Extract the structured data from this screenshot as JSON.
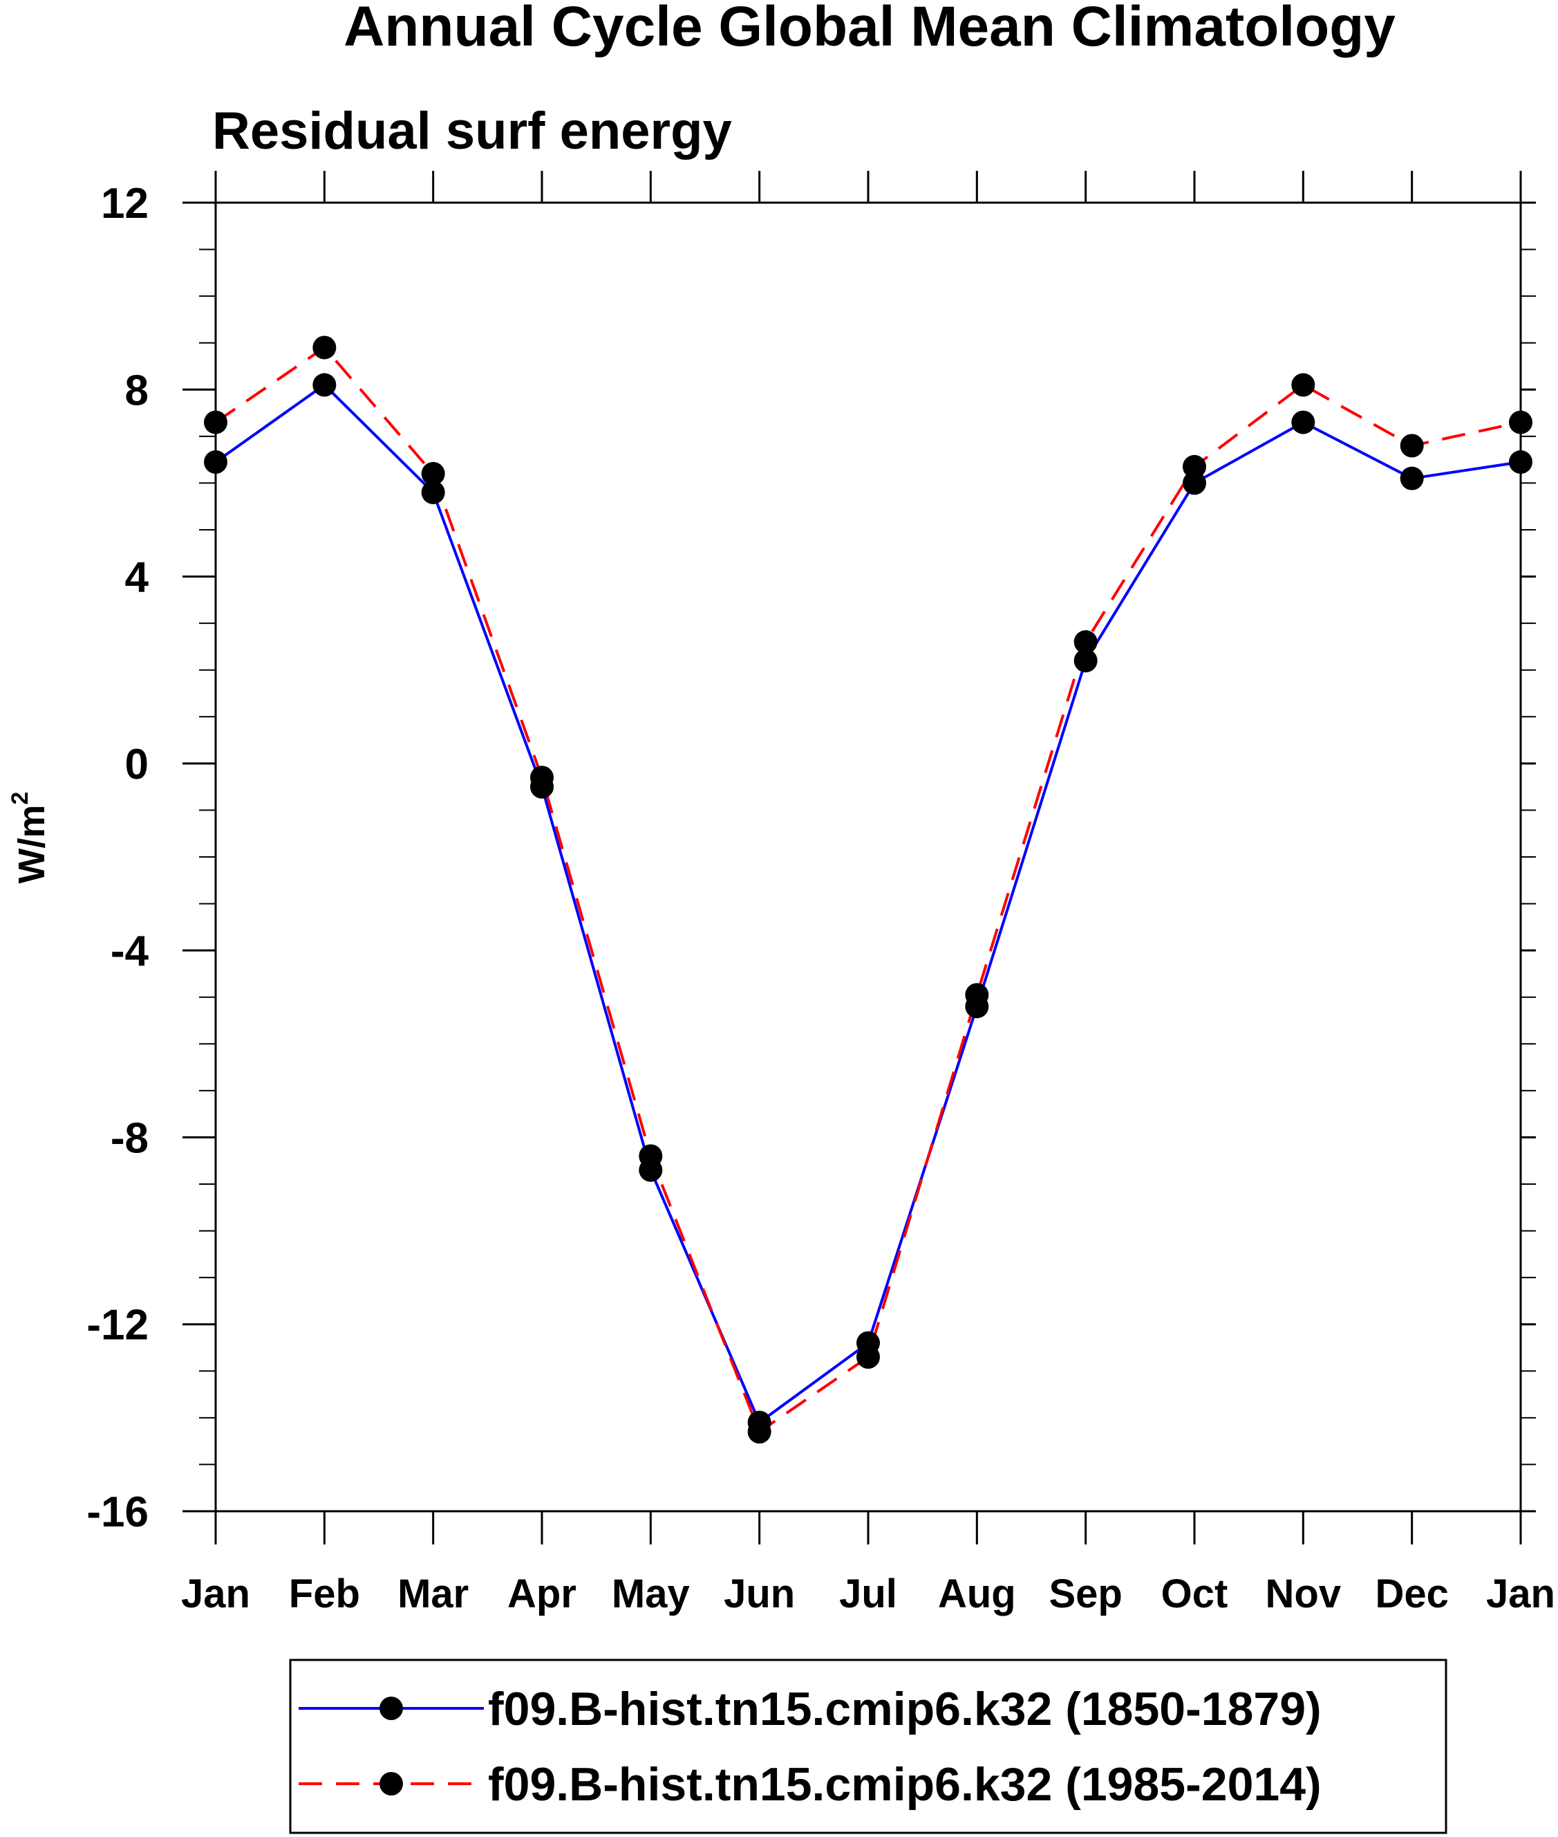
{
  "chart_data": {
    "type": "line",
    "title": "Annual Cycle Global Mean Climatology",
    "subtitle": "Residual surf energy",
    "ylabel": "W/m",
    "ylabel_superscript": "2",
    "xlabel": "",
    "categories": [
      "Jan",
      "Feb",
      "Mar",
      "Apr",
      "May",
      "Jun",
      "Jul",
      "Aug",
      "Sep",
      "Oct",
      "Nov",
      "Dec",
      "Jan"
    ],
    "ylim": [
      -16,
      12
    ],
    "yticks": [
      -16,
      -12,
      -8,
      -4,
      0,
      4,
      8,
      12
    ],
    "ytick_labels": [
      "-16",
      "-12",
      "-8",
      "-4",
      "0",
      "4",
      "8",
      "12"
    ],
    "y_minor_step": 1,
    "grid": false,
    "legend_position": "bottom",
    "series": [
      {
        "name": "f09.B-hist.tn15.cmip6.k32 (1850-1879)",
        "color": "#0000ff",
        "line_style": "solid",
        "marker": "filled-circle",
        "values": [
          6.45,
          8.1,
          5.8,
          -0.5,
          -8.7,
          -14.1,
          -12.4,
          -5.2,
          2.2,
          6.0,
          7.3,
          6.1,
          6.45
        ]
      },
      {
        "name": "f09.B-hist.tn15.cmip6.k32 (1985-2014)",
        "color": "#ff0000",
        "line_style": "dashed",
        "marker": "filled-circle",
        "values": [
          7.3,
          8.9,
          6.2,
          -0.3,
          -8.4,
          -14.3,
          -12.7,
          -4.95,
          2.6,
          6.35,
          8.1,
          6.8,
          7.3
        ]
      }
    ]
  }
}
